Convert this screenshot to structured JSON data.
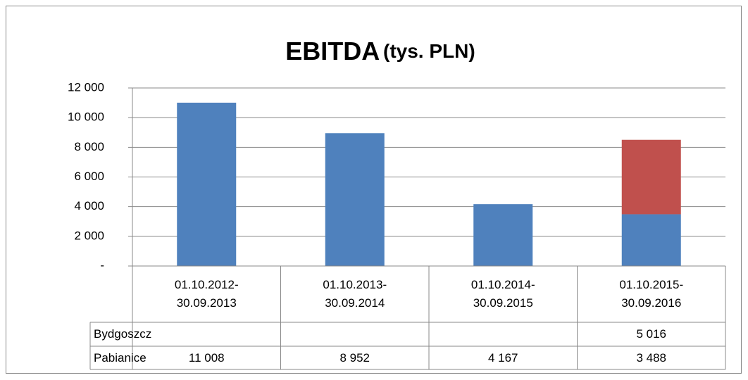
{
  "chart_data": {
    "type": "bar",
    "stacked": true,
    "title": "EBITDA",
    "subtitle": "(tys. PLN)",
    "categories": [
      "01.10.2012-30.09.2013",
      "01.10.2013-30.09.2014",
      "01.10.2014-30.09.2015",
      "01.10.2015-30.09.2016"
    ],
    "series": [
      {
        "name": "Pabianice",
        "color": "#4f81bd",
        "values": [
          11008,
          8952,
          4167,
          3488
        ],
        "value_labels": [
          "11 008",
          "8 952",
          "4 167",
          "3 488"
        ]
      },
      {
        "name": "Bydgoszcz",
        "color": "#c0504d",
        "values": [
          null,
          null,
          null,
          5016
        ],
        "value_labels": [
          null,
          null,
          null,
          "5 016"
        ]
      }
    ],
    "ylim": [
      0,
      12000
    ],
    "yticks": [
      {
        "value": 0,
        "label": "-"
      },
      {
        "value": 2000,
        "label": "2 000"
      },
      {
        "value": 4000,
        "label": "4 000"
      },
      {
        "value": 6000,
        "label": "6 000"
      },
      {
        "value": 8000,
        "label": "8 000"
      },
      {
        "value": 10000,
        "label": "10 000"
      },
      {
        "value": 12000,
        "label": "12 000"
      }
    ],
    "grid": true
  }
}
